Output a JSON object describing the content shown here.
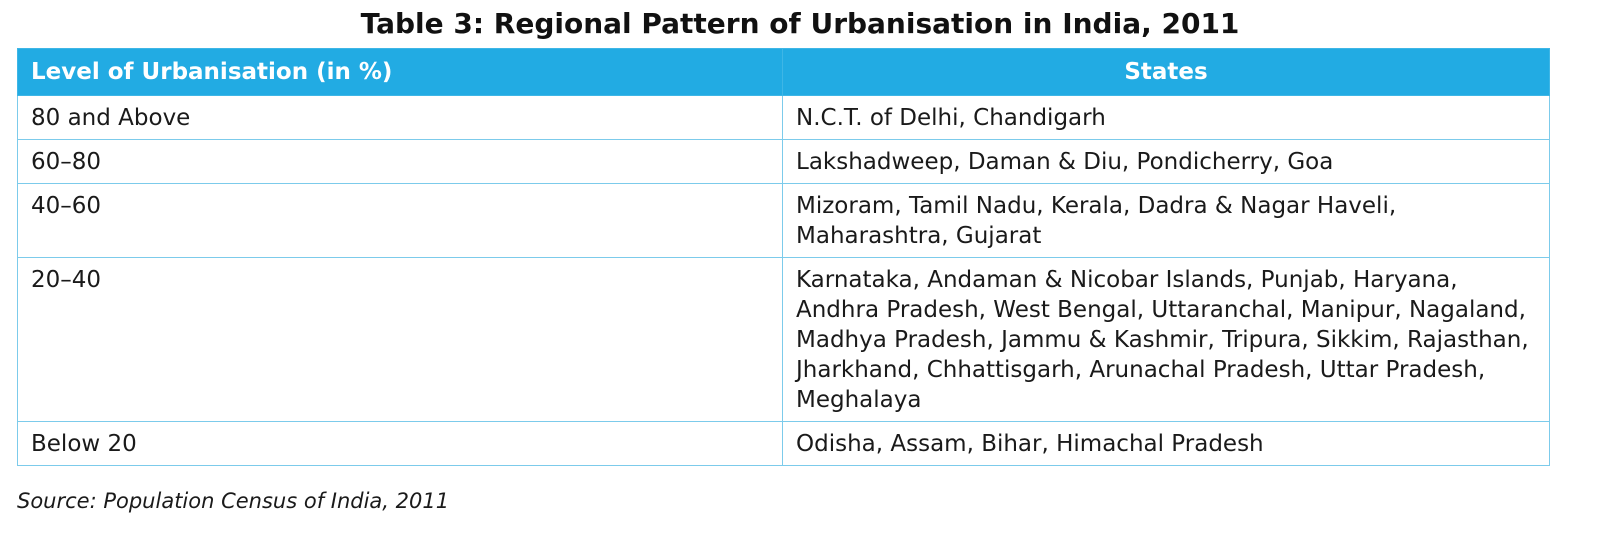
{
  "title": "Table 3: Regional Pattern of Urbanisation in India, 2011",
  "table": {
    "headers": [
      "Level of Urbanisation (in %)",
      "States"
    ],
    "rows": [
      [
        "80 and Above",
        "N.C.T. of Delhi, Chandigarh"
      ],
      [
        "60–80",
        "Lakshadweep, Daman & Diu, Pondicherry, Goa"
      ],
      [
        "40–60",
        "Mizoram, Tamil Nadu, Kerala, Dadra & Nagar Haveli, Maharashtra, Gujarat"
      ],
      [
        "20–40",
        "Karnataka, Andaman & Nicobar Islands, Punjab, Haryana, Andhra Pradesh, West Bengal, Uttaranchal, Manipur, Nagaland, Madhya Pradesh, Jammu & Kashmir, Tripura, Sikkim, Rajasthan, Jharkhand, Chhattisgarh, Arunachal Pradesh, Uttar Pradesh, Meghalaya"
      ],
      [
        "Below 20",
        "Odisha, Assam, Bihar, Himachal Pradesh"
      ]
    ]
  },
  "source": "Source: Population Census of India, 2011",
  "colors": {
    "header_background": "#22abe3",
    "header_text": "#ffffff",
    "border": "#7ccbeb"
  }
}
